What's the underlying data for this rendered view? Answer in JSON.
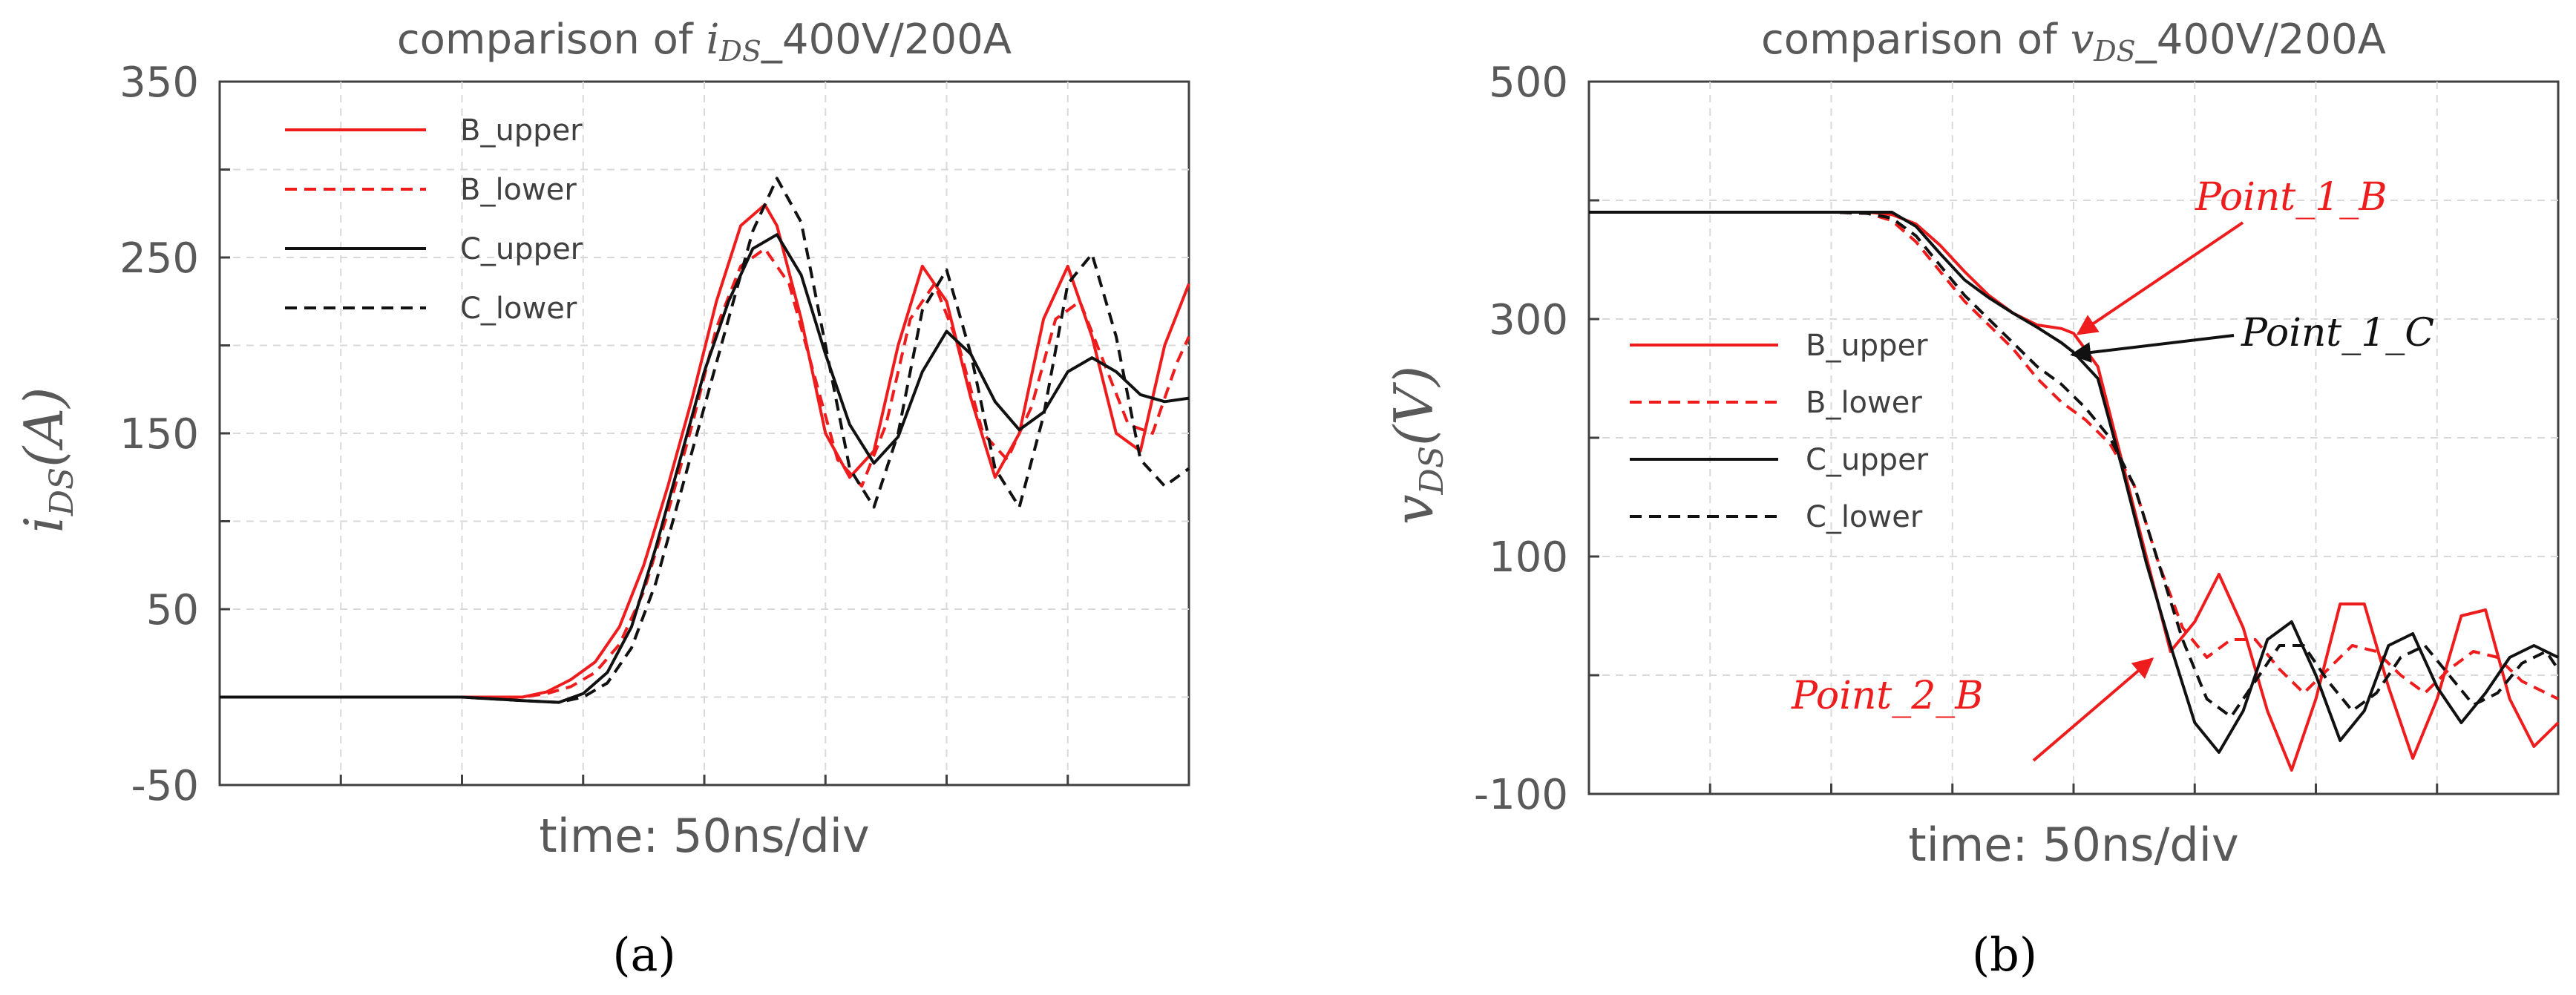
{
  "figure": {
    "panels": [
      "(a)",
      "(b)"
    ]
  },
  "colors": {
    "red": "#ee1c1c",
    "black": "#111111",
    "grid": "#d9d9d9",
    "text": "#595959"
  },
  "chart_data": [
    {
      "type": "line",
      "title_prefix": "comparison of ",
      "title_var": "i",
      "title_sub": "DS",
      "title_suffix": "_400V/200A",
      "ylabel_var": "i",
      "ylabel_sub": "DS",
      "ylabel_rest": "(A)",
      "xlabel": "time: 50ns/div",
      "ylim": [
        -50,
        350
      ],
      "yticks": [
        "350",
        "250",
        "150",
        "50",
        "-50"
      ],
      "ytick_values": [
        350,
        250,
        150,
        50,
        -50
      ],
      "xlim": [
        0,
        8
      ],
      "grid": true,
      "legend_position": "top-left",
      "panel_label": "(a)",
      "series": [
        {
          "name": "B_upper",
          "color": "#ee1c1c",
          "dash": "solid",
          "x": [
            0,
            0.5,
            1,
            1.5,
            2,
            2.5,
            2.7,
            2.9,
            3.1,
            3.3,
            3.5,
            3.7,
            3.9,
            4.1,
            4.3,
            4.5,
            4.6,
            4.8,
            5.0,
            5.2,
            5.4,
            5.6,
            5.8,
            6.0,
            6.2,
            6.4,
            6.6,
            6.8,
            7.0,
            7.2,
            7.4,
            7.6,
            7.8,
            8.0
          ],
          "y": [
            0,
            0,
            0,
            0,
            0,
            0,
            3,
            10,
            20,
            40,
            75,
            120,
            170,
            225,
            268,
            280,
            268,
            215,
            150,
            125,
            140,
            200,
            245,
            225,
            170,
            125,
            150,
            215,
            245,
            205,
            150,
            140,
            200,
            235
          ]
        },
        {
          "name": "B_lower",
          "color": "#ee1c1c",
          "dash": "dashed",
          "x": [
            0,
            0.5,
            1,
            1.5,
            2,
            2.5,
            2.7,
            2.9,
            3.1,
            3.3,
            3.5,
            3.7,
            3.9,
            4.1,
            4.3,
            4.5,
            4.7,
            4.9,
            5.1,
            5.3,
            5.5,
            5.7,
            5.9,
            6.1,
            6.3,
            6.5,
            6.7,
            6.9,
            7.1,
            7.3,
            7.5,
            7.7,
            7.9,
            8.0
          ],
          "y": [
            0,
            0,
            0,
            0,
            0,
            0,
            2,
            6,
            14,
            30,
            60,
            105,
            155,
            210,
            245,
            255,
            235,
            185,
            135,
            120,
            155,
            215,
            235,
            200,
            150,
            135,
            165,
            215,
            225,
            190,
            155,
            150,
            190,
            205
          ]
        },
        {
          "name": "C_upper",
          "color": "#111111",
          "dash": "solid",
          "x": [
            0,
            0.5,
            1,
            1.5,
            2,
            2.5,
            2.8,
            3.0,
            3.2,
            3.4,
            3.6,
            3.8,
            4.0,
            4.2,
            4.4,
            4.6,
            4.8,
            5.0,
            5.2,
            5.4,
            5.6,
            5.8,
            6.0,
            6.2,
            6.4,
            6.6,
            6.8,
            7.0,
            7.2,
            7.4,
            7.6,
            7.8,
            8.0
          ],
          "y": [
            0,
            0,
            0,
            0,
            0,
            -2,
            -3,
            2,
            14,
            40,
            85,
            135,
            185,
            225,
            255,
            263,
            240,
            195,
            155,
            133,
            148,
            185,
            208,
            195,
            168,
            152,
            162,
            185,
            193,
            185,
            172,
            168,
            170
          ]
        },
        {
          "name": "C_lower",
          "color": "#111111",
          "dash": "dashed",
          "x": [
            0,
            0.5,
            1,
            1.5,
            2,
            2.5,
            2.8,
            3.0,
            3.2,
            3.4,
            3.6,
            3.8,
            4.0,
            4.2,
            4.4,
            4.6,
            4.8,
            5.0,
            5.2,
            5.4,
            5.6,
            5.8,
            6.0,
            6.2,
            6.4,
            6.6,
            6.8,
            7.0,
            7.2,
            7.4,
            7.6,
            7.8,
            8.0
          ],
          "y": [
            0,
            0,
            0,
            0,
            0,
            -2,
            -3,
            0,
            8,
            28,
            65,
            115,
            165,
            215,
            265,
            295,
            270,
            200,
            130,
            108,
            150,
            220,
            243,
            195,
            130,
            108,
            160,
            235,
            252,
            205,
            135,
            120,
            130
          ]
        }
      ]
    },
    {
      "type": "line",
      "title_prefix": "comparison of ",
      "title_var": "v",
      "title_sub": "DS",
      "title_suffix": "_400V/200A",
      "ylabel_var": "v",
      "ylabel_sub": "DS",
      "ylabel_rest": "(V)",
      "xlabel": "time: 50ns/div",
      "ylim": [
        -100,
        500
      ],
      "yticks": [
        "500",
        "300",
        "100",
        "-100"
      ],
      "ytick_values": [
        500,
        300,
        100,
        -100
      ],
      "xlim": [
        0,
        8
      ],
      "grid": true,
      "legend_position": "middle-left",
      "panel_label": "(b)",
      "annotations": [
        {
          "text": "Point_1_B",
          "color": "#ee1c1c"
        },
        {
          "text": "Point_1_C",
          "color": "#111111"
        },
        {
          "text": "Point_2_B",
          "color": "#ee1c1c"
        }
      ],
      "series": [
        {
          "name": "B_upper",
          "color": "#ee1c1c",
          "dash": "solid",
          "x": [
            0,
            0.5,
            1,
            1.5,
            2,
            2.3,
            2.5,
            2.7,
            2.9,
            3.1,
            3.3,
            3.5,
            3.7,
            3.9,
            4.0,
            4.2,
            4.4,
            4.6,
            4.8,
            5.0,
            5.2,
            5.4,
            5.6,
            5.8,
            6.0,
            6.2,
            6.4,
            6.6,
            6.8,
            7.0,
            7.2,
            7.4,
            7.6,
            7.8,
            8.0
          ],
          "y": [
            390,
            390,
            390,
            390,
            390,
            390,
            388,
            380,
            362,
            340,
            320,
            305,
            295,
            292,
            288,
            260,
            180,
            100,
            20,
            45,
            85,
            40,
            -30,
            -80,
            -20,
            60,
            60,
            -10,
            -70,
            -20,
            50,
            55,
            -20,
            -60,
            -40
          ]
        },
        {
          "name": "B_lower",
          "color": "#ee1c1c",
          "dash": "dashed",
          "x": [
            0,
            0.5,
            1,
            1.5,
            2,
            2.3,
            2.5,
            2.7,
            2.9,
            3.1,
            3.3,
            3.5,
            3.7,
            3.9,
            4.1,
            4.3,
            4.5,
            4.7,
            4.9,
            5.1,
            5.3,
            5.5,
            5.7,
            5.9,
            6.1,
            6.3,
            6.5,
            6.7,
            6.9,
            7.1,
            7.3,
            7.5,
            7.7,
            7.9,
            8.0
          ],
          "y": [
            390,
            390,
            390,
            390,
            390,
            389,
            383,
            365,
            340,
            315,
            295,
            275,
            250,
            230,
            215,
            195,
            160,
            95,
            40,
            15,
            30,
            30,
            5,
            -15,
            5,
            25,
            20,
            0,
            -15,
            5,
            20,
            15,
            -5,
            -15,
            -20
          ]
        },
        {
          "name": "C_upper",
          "color": "#111111",
          "dash": "solid",
          "x": [
            0,
            0.5,
            1,
            1.5,
            2,
            2.3,
            2.5,
            2.7,
            2.9,
            3.1,
            3.3,
            3.5,
            3.7,
            3.9,
            4.0,
            4.2,
            4.4,
            4.6,
            4.8,
            5.0,
            5.2,
            5.4,
            5.6,
            5.8,
            6.0,
            6.2,
            6.4,
            6.6,
            6.8,
            7.0,
            7.2,
            7.4,
            7.6,
            7.8,
            8.0
          ],
          "y": [
            390,
            390,
            390,
            390,
            390,
            390,
            390,
            378,
            355,
            333,
            318,
            305,
            293,
            280,
            272,
            250,
            175,
            95,
            25,
            -40,
            -65,
            -30,
            30,
            45,
            0,
            -55,
            -30,
            25,
            35,
            -10,
            -40,
            -15,
            15,
            25,
            15
          ]
        },
        {
          "name": "C_lower",
          "color": "#111111",
          "dash": "dashed",
          "x": [
            0,
            0.5,
            1,
            1.5,
            2,
            2.3,
            2.5,
            2.7,
            2.9,
            3.1,
            3.3,
            3.5,
            3.7,
            3.9,
            4.1,
            4.3,
            4.5,
            4.7,
            4.9,
            5.1,
            5.3,
            5.5,
            5.7,
            5.9,
            6.1,
            6.3,
            6.5,
            6.7,
            6.9,
            7.1,
            7.3,
            7.5,
            7.7,
            7.9,
            8.0
          ],
          "y": [
            390,
            390,
            390,
            390,
            390,
            389,
            385,
            370,
            345,
            320,
            300,
            280,
            260,
            245,
            225,
            200,
            160,
            95,
            30,
            -20,
            -35,
            -5,
            25,
            25,
            -5,
            -30,
            -15,
            15,
            25,
            0,
            -25,
            -15,
            10,
            20,
            5
          ]
        }
      ]
    }
  ]
}
